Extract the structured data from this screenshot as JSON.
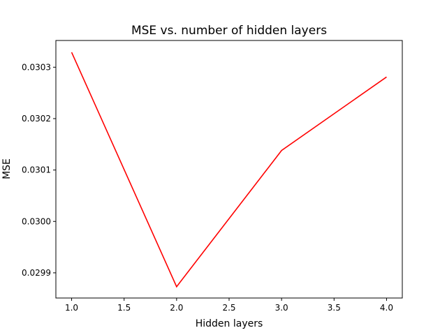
{
  "chart_data": {
    "type": "line",
    "title": "MSE vs. number of hidden layers",
    "xlabel": "Hidden layers",
    "ylabel": "MSE",
    "xlim": [
      0.85,
      4.15
    ],
    "ylim": [
      0.029851,
      0.030352
    ],
    "xticks": [
      {
        "value": 1.0,
        "label": "1.0"
      },
      {
        "value": 1.5,
        "label": "1.5"
      },
      {
        "value": 2.0,
        "label": "2.0"
      },
      {
        "value": 2.5,
        "label": "2.5"
      },
      {
        "value": 3.0,
        "label": "3.0"
      },
      {
        "value": 3.5,
        "label": "3.5"
      },
      {
        "value": 4.0,
        "label": "4.0"
      }
    ],
    "yticks": [
      {
        "value": 0.0299,
        "label": "0.0299"
      },
      {
        "value": 0.03,
        "label": "0.0300"
      },
      {
        "value": 0.0301,
        "label": "0.0301"
      },
      {
        "value": 0.0302,
        "label": "0.0302"
      },
      {
        "value": 0.0303,
        "label": "0.0303"
      }
    ],
    "grid": false,
    "series": [
      {
        "color": "#ff0000",
        "x": [
          1,
          2,
          3,
          4
        ],
        "y": [
          0.030329,
          0.029873,
          0.030138,
          0.030281
        ]
      }
    ]
  }
}
